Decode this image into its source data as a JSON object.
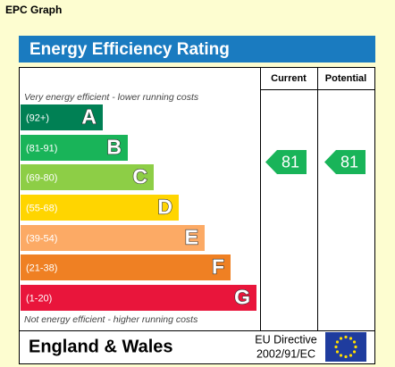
{
  "title": "EPC Graph",
  "header": "Energy Efficiency Rating",
  "columns": [
    "Current",
    "Potential"
  ],
  "top_note": "Very energy efficient - lower running costs",
  "bottom_note": "Not energy efficient - higher running costs",
  "bands": [
    {
      "range": "(92+)",
      "letter": "A",
      "color": "#008054"
    },
    {
      "range": "(81-91)",
      "letter": "B",
      "color": "#19b459"
    },
    {
      "range": "(69-80)",
      "letter": "C",
      "color": "#8dce46"
    },
    {
      "range": "(55-68)",
      "letter": "D",
      "color": "#ffd500"
    },
    {
      "range": "(39-54)",
      "letter": "E",
      "color": "#fcaa65"
    },
    {
      "range": "(21-38)",
      "letter": "F",
      "color": "#ef8023"
    },
    {
      "range": "(1-20)",
      "letter": "G",
      "color": "#e9153b"
    }
  ],
  "ratings": [
    81,
    81
  ],
  "rating_color": "#19b459",
  "footer": {
    "region": "England & Wales",
    "directive": [
      "EU Directive",
      "2002/91/EC"
    ]
  }
}
